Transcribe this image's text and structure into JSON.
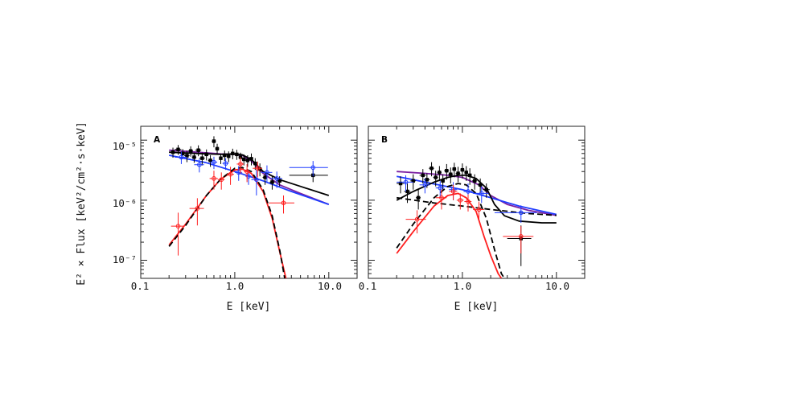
{
  "chart_data": [
    {
      "type": "scatter",
      "panel_label": "A",
      "xlabel": "E [keV]",
      "ylabel": "E² × Flux [keV²/cm²·s·keV]",
      "x_scale": "log",
      "y_scale": "log",
      "xlim": [
        0.1,
        20
      ],
      "ylim": [
        5e-08,
        1.7e-05
      ],
      "x_ticks": [
        "0.1",
        "1.0",
        "10.0"
      ],
      "y_ticks": [
        "10⁻⁷",
        "10⁻⁶",
        "10⁻⁵"
      ],
      "colors": {
        "black": "#000000",
        "blue": "#1f3cff",
        "red": "#ff2020",
        "purple": "#7a1fa2"
      },
      "data_points": [
        {
          "color": "black",
          "points": [
            [
              0.22,
              6.3e-06,
              0.02,
              1.2e-06
            ],
            [
              0.25,
              7e-06,
              0.02,
              1.3e-06
            ],
            [
              0.28,
              6e-06,
              0.02,
              1.1e-06
            ],
            [
              0.31,
              5.5e-06,
              0.02,
              1.2e-06
            ],
            [
              0.34,
              6.6e-06,
              0.02,
              1.3e-06
            ],
            [
              0.37,
              5.2e-06,
              0.02,
              1e-06
            ],
            [
              0.41,
              6.8e-06,
              0.03,
              1.4e-06
            ],
            [
              0.45,
              5e-06,
              0.03,
              1.2e-06
            ],
            [
              0.5,
              5.8e-06,
              0.03,
              1.2e-06
            ],
            [
              0.55,
              4.6e-06,
              0.03,
              1e-06
            ],
            [
              0.6,
              9.6e-06,
              0.03,
              2e-06
            ],
            [
              0.65,
              7.2e-06,
              0.03,
              1.5e-06
            ],
            [
              0.71,
              5e-06,
              0.03,
              1e-06
            ],
            [
              0.78,
              5.6e-06,
              0.04,
              1.1e-06
            ],
            [
              0.86,
              5.4e-06,
              0.04,
              1.1e-06
            ],
            [
              0.95,
              6e-06,
              0.05,
              1.2e-06
            ],
            [
              1.05,
              5.8e-06,
              0.05,
              1.1e-06
            ],
            [
              1.15,
              5.2e-06,
              0.05,
              1e-06
            ],
            [
              1.25,
              4.8e-06,
              0.06,
              1e-06
            ],
            [
              1.37,
              4.6e-06,
              0.06,
              1e-06
            ],
            [
              1.5,
              4.9e-06,
              0.07,
              1.1e-06
            ],
            [
              1.65,
              4.1e-06,
              0.08,
              9e-07
            ],
            [
              1.85,
              3.3e-06,
              0.1,
              8e-07
            ],
            [
              2.1,
              2.4e-06,
              0.12,
              6e-07
            ],
            [
              2.5,
              2e-06,
              0.15,
              5e-07
            ],
            [
              3.0,
              2.1e-06,
              0.25,
              4e-07
            ],
            [
              6.8,
              2.6e-06,
              3.0,
              6e-07
            ]
          ]
        },
        {
          "color": "blue",
          "points": [
            [
              0.27,
              5.2e-06,
              0.04,
              1.2e-06
            ],
            [
              0.42,
              3.9e-06,
              0.05,
              1e-06
            ],
            [
              0.6,
              4.3e-06,
              0.05,
              1e-06
            ],
            [
              0.8,
              4.1e-06,
              0.06,
              9e-07
            ],
            [
              1.1,
              2.9e-06,
              0.1,
              8e-07
            ],
            [
              1.4,
              2.5e-06,
              0.1,
              7e-07
            ],
            [
              1.7,
              2.2e-06,
              0.2,
              1e-06
            ],
            [
              2.2,
              2.9e-06,
              0.3,
              9e-07
            ],
            [
              2.8,
              2.3e-06,
              0.4,
              7e-07
            ],
            [
              6.8,
              3.5e-06,
              3.0,
              1e-06
            ]
          ]
        },
        {
          "color": "red",
          "points": [
            [
              0.25,
              3.7e-07,
              0.04,
              2.5e-07
            ],
            [
              0.4,
              7.3e-07,
              0.07,
              3.5e-07
            ],
            [
              0.6,
              2.3e-06,
              0.06,
              8e-07
            ],
            [
              0.72,
              2.2e-06,
              0.06,
              7e-07
            ],
            [
              0.9,
              2.7e-06,
              0.08,
              9e-07
            ],
            [
              1.15,
              4e-06,
              0.1,
              1.2e-06
            ],
            [
              1.35,
              3e-06,
              0.1,
              1e-06
            ],
            [
              1.75,
              3.4e-06,
              0.2,
              1e-06
            ],
            [
              3.3,
              9e-07,
              1.0,
              3e-07
            ]
          ]
        }
      ],
      "model_curves": [
        {
          "color": "purple",
          "style": "solid",
          "x": [
            0.2,
            0.4,
            0.7,
            1.0,
            1.2,
            1.5,
            2.0,
            3.0,
            5.0,
            10.0
          ],
          "y": [
            6.8e-06,
            6.3e-06,
            5.9e-06,
            5.8e-06,
            5.6e-06,
            4.5e-06,
            2.8e-06,
            1.8e-06,
            1.3e-06,
            8.5e-07
          ]
        },
        {
          "color": "black",
          "style": "solid",
          "x": [
            0.2,
            0.4,
            0.7,
            1.0,
            1.2,
            1.5,
            2.0,
            3.0,
            5.0,
            10.0
          ],
          "y": [
            6.3e-06,
            6e-06,
            5.8e-06,
            5.9e-06,
            5.7e-06,
            4.8e-06,
            3e-06,
            2.2e-06,
            1.7e-06,
            1.2e-06
          ]
        },
        {
          "color": "blue",
          "style": "solid",
          "x": [
            0.2,
            0.5,
            1.0,
            2.0,
            4.0,
            10.0
          ],
          "y": [
            5.6e-06,
            4.2e-06,
            3e-06,
            2.1e-06,
            1.4e-06,
            8.5e-07
          ]
        },
        {
          "color": "red",
          "style": "solid",
          "x": [
            0.2,
            0.3,
            0.5,
            0.7,
            1.0,
            1.2,
            1.5,
            2.0,
            2.5,
            3.0,
            3.5
          ],
          "y": [
            1.8e-07,
            4e-07,
            1.2e-06,
            2.2e-06,
            3.2e-06,
            3.3e-06,
            2.8e-06,
            1.4e-06,
            5e-07,
            1.4e-07,
            5e-08
          ]
        },
        {
          "color": "black",
          "style": "dashed",
          "x": [
            0.2,
            0.3,
            0.5,
            0.7,
            1.0,
            1.2,
            1.5,
            2.0,
            2.5,
            3.0,
            3.4
          ],
          "y": [
            1.7e-07,
            3.8e-07,
            1.2e-06,
            2.2e-06,
            3.4e-06,
            3.5e-06,
            3e-06,
            1.5e-06,
            5.5e-07,
            1.5e-07,
            5e-08
          ]
        }
      ]
    },
    {
      "type": "scatter",
      "panel_label": "B",
      "xlabel": "E [keV]",
      "ylabel": "",
      "x_scale": "log",
      "y_scale": "log",
      "xlim": [
        0.1,
        20
      ],
      "ylim": [
        5e-08,
        1.7e-05
      ],
      "x_ticks": [
        "0.1",
        "1.0",
        "10.0"
      ],
      "y_ticks": [],
      "colors": {
        "black": "#000000",
        "blue": "#1f3cff",
        "red": "#ff2020",
        "purple": "#7a1fa2"
      },
      "data_points": [
        {
          "color": "black",
          "points": [
            [
              0.22,
              1.9e-06,
              0.02,
              6e-07
            ],
            [
              0.26,
              1.4e-06,
              0.02,
              5e-07
            ],
            [
              0.3,
              2.1e-06,
              0.02,
              6e-07
            ],
            [
              0.34,
              1.1e-06,
              0.02,
              4e-07
            ],
            [
              0.38,
              2.6e-06,
              0.03,
              7e-07
            ],
            [
              0.42,
              2.2e-06,
              0.03,
              6e-07
            ],
            [
              0.47,
              3.4e-06,
              0.03,
              9e-07
            ],
            [
              0.52,
              2.4e-06,
              0.03,
              7e-07
            ],
            [
              0.57,
              2.9e-06,
              0.03,
              8e-07
            ],
            [
              0.62,
              2.1e-06,
              0.03,
              6e-07
            ],
            [
              0.68,
              3.1e-06,
              0.04,
              9e-07
            ],
            [
              0.75,
              2.7e-06,
              0.04,
              8e-07
            ],
            [
              0.82,
              3.3e-06,
              0.04,
              9e-07
            ],
            [
              0.9,
              2.8e-06,
              0.05,
              8e-07
            ],
            [
              1.0,
              3.2e-06,
              0.05,
              9e-07
            ],
            [
              1.1,
              2.9e-06,
              0.05,
              8e-07
            ],
            [
              1.2,
              2.6e-06,
              0.06,
              8e-07
            ],
            [
              1.35,
              2.1e-06,
              0.08,
              6e-07
            ],
            [
              1.55,
              1.8e-06,
              0.1,
              5e-07
            ],
            [
              1.8,
              1.5e-06,
              0.15,
              4e-07
            ],
            [
              4.2,
              2.3e-07,
              1.2,
              1.5e-07
            ]
          ]
        },
        {
          "color": "blue",
          "points": [
            [
              0.25,
              2e-06,
              0.05,
              6e-07
            ],
            [
              0.4,
              1.8e-06,
              0.05,
              5e-07
            ],
            [
              0.58,
              1.6e-06,
              0.06,
              5e-07
            ],
            [
              0.8,
              1.5e-06,
              0.08,
              5e-07
            ],
            [
              1.15,
              1.4e-06,
              0.12,
              5e-07
            ],
            [
              1.6,
              1.3e-06,
              0.3,
              4e-07
            ],
            [
              4.2,
              6.2e-07,
              2.0,
              2e-07
            ]
          ]
        },
        {
          "color": "red",
          "points": [
            [
              0.33,
              4.8e-07,
              0.08,
              2e-07
            ],
            [
              0.6,
              1.1e-06,
              0.08,
              4e-07
            ],
            [
              0.8,
              1.4e-06,
              0.08,
              4e-07
            ],
            [
              0.95,
              1e-06,
              0.08,
              3e-07
            ],
            [
              1.15,
              9.5e-07,
              0.1,
              3e-07
            ],
            [
              1.5,
              7e-07,
              0.2,
              2.5e-07
            ],
            [
              4.2,
              2.5e-07,
              1.5,
              1.2e-07
            ]
          ]
        }
      ],
      "model_curves": [
        {
          "color": "purple",
          "style": "solid",
          "x": [
            0.2,
            0.4,
            0.7,
            1.0,
            1.5,
            2.0,
            3.0,
            5.0,
            10.0
          ],
          "y": [
            3e-06,
            2.8e-06,
            2.6e-06,
            2.4e-06,
            1.8e-06,
            1.2e-06,
            8.5e-07,
            6.8e-07,
            5.6e-07
          ]
        },
        {
          "color": "blue",
          "style": "solid",
          "x": [
            0.2,
            0.4,
            1.0,
            2.0,
            4.0,
            10.0
          ],
          "y": [
            2.5e-06,
            2e-06,
            1.5e-06,
            1.1e-06,
            8e-07,
            5.8e-07
          ]
        },
        {
          "color": "black",
          "style": "solid",
          "x": [
            0.2,
            0.3,
            0.5,
            0.7,
            0.9,
            1.1,
            1.4,
            1.8,
            2.2,
            2.8,
            4.0,
            7.0,
            10.0
          ],
          "y": [
            1e-06,
            1.4e-06,
            2e-06,
            2.4e-06,
            2.6e-06,
            2.6e-06,
            2.3e-06,
            1.6e-06,
            8.5e-07,
            5.5e-07,
            4.5e-07,
            4.2e-07,
            4.2e-07
          ]
        },
        {
          "color": "black",
          "style": "dashed",
          "x": [
            0.2,
            0.3,
            0.5,
            0.7,
            0.9,
            1.1,
            1.4,
            1.8,
            2.2,
            2.6,
            2.8
          ],
          "y": [
            1.6e-07,
            4e-07,
            1.1e-06,
            1.7e-06,
            1.9e-06,
            1.8e-06,
            1.3e-06,
            5e-07,
            1.5e-07,
            6e-08,
            5e-08
          ]
        },
        {
          "color": "black",
          "style": "dashed",
          "x": [
            0.2,
            0.5,
            1.0,
            2.0,
            5.0,
            10.0
          ],
          "y": [
            1.1e-06,
            9e-07,
            8e-07,
            7e-07,
            6e-07,
            5.6e-07
          ]
        },
        {
          "color": "red",
          "style": "solid",
          "x": [
            0.2,
            0.3,
            0.5,
            0.7,
            0.9,
            1.1,
            1.4,
            1.7,
            2.0,
            2.4,
            2.6
          ],
          "y": [
            1.3e-07,
            3e-07,
            8e-07,
            1.2e-06,
            1.3e-06,
            1.1e-06,
            6.5e-07,
            2.5e-07,
            1.2e-07,
            6e-08,
            5e-08
          ]
        }
      ]
    }
  ]
}
